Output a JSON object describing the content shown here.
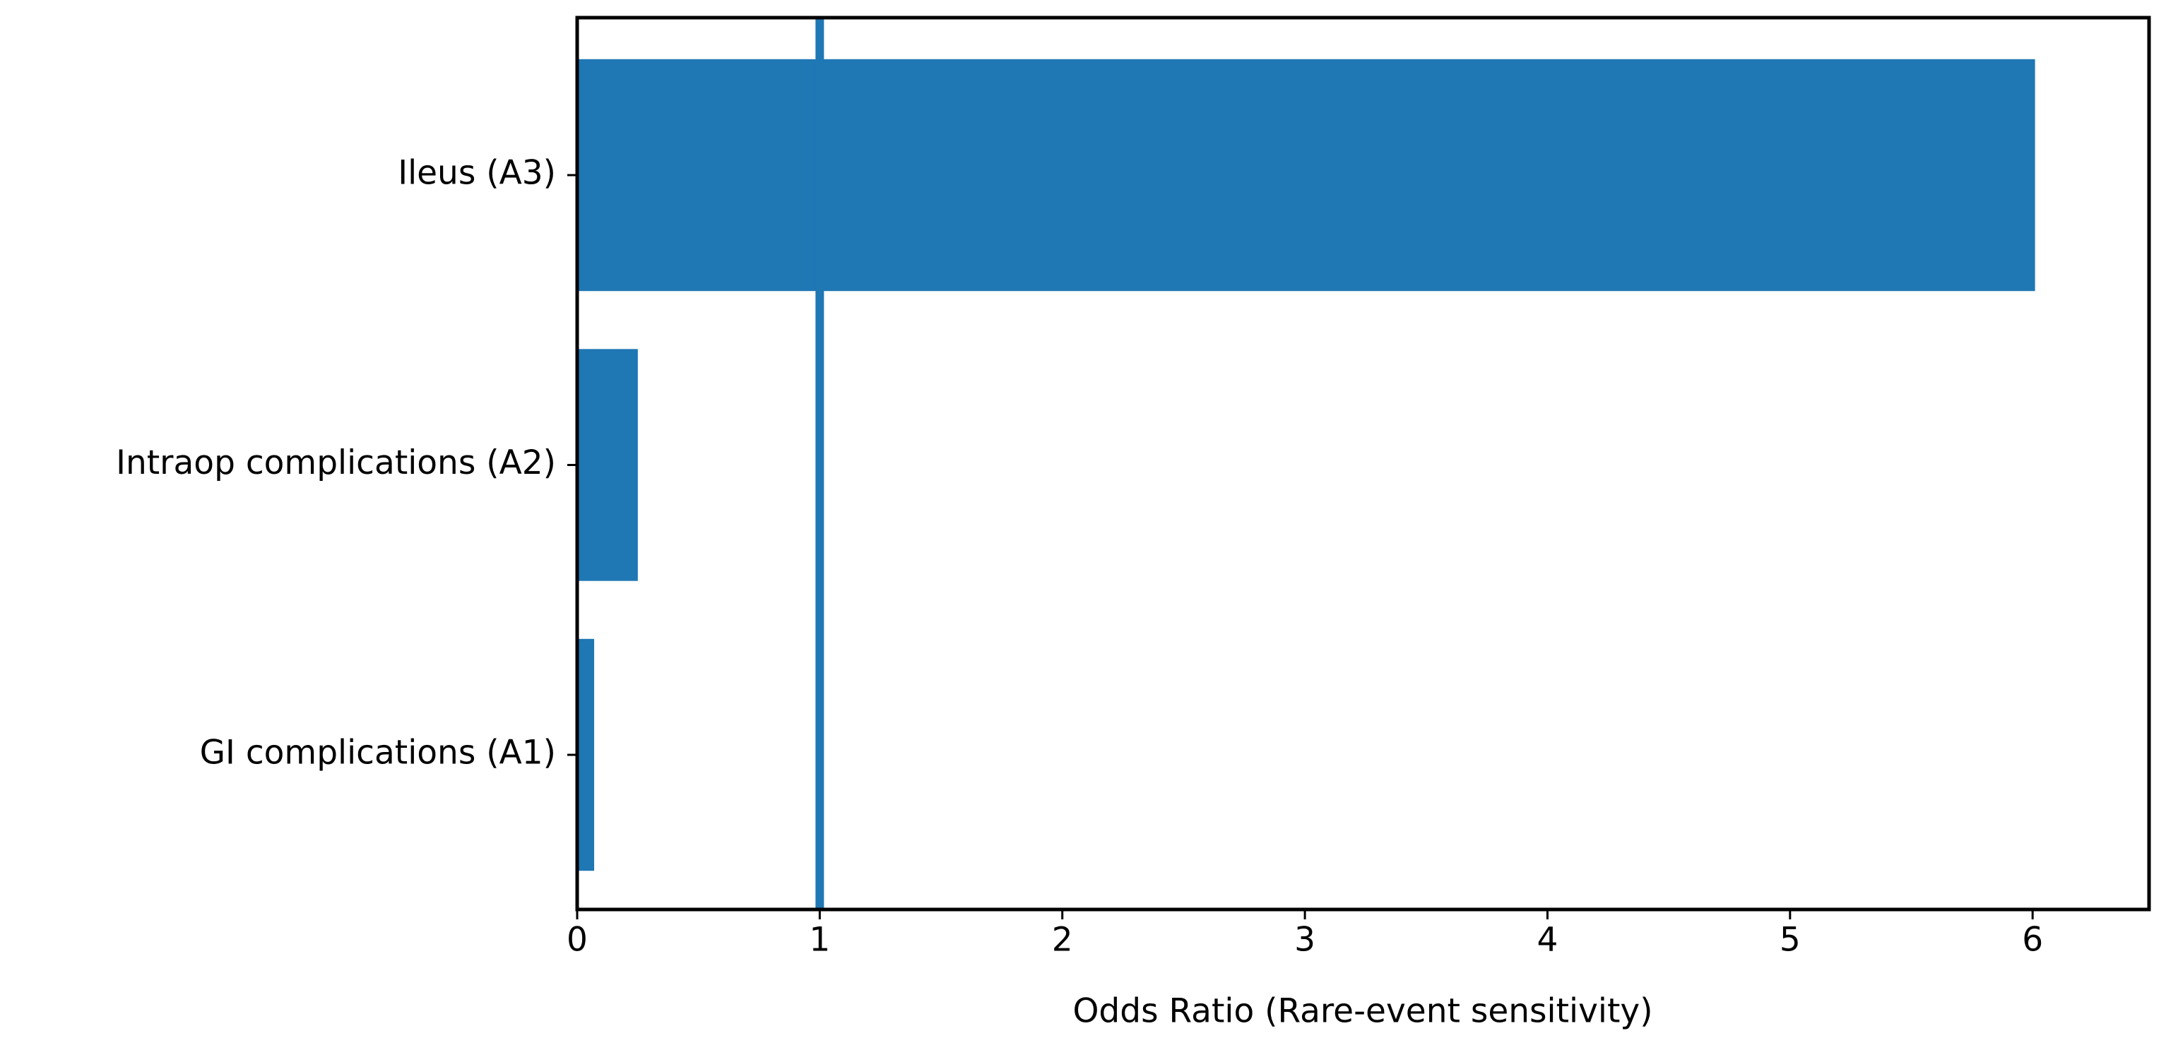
{
  "chart_data": {
    "type": "barh",
    "xlabel": "Odds Ratio (Rare-event sensitivity)",
    "categories": [
      "GI complications (A1)",
      "Intraop complications (A2)",
      "Ileus (A3)"
    ],
    "values": [
      0.07,
      0.25,
      6.01
    ],
    "color": "#1f77b4",
    "vline": 1,
    "xlim": [
      0,
      6.48
    ],
    "xticks": [
      0,
      1,
      2,
      3,
      4,
      5,
      6
    ]
  }
}
